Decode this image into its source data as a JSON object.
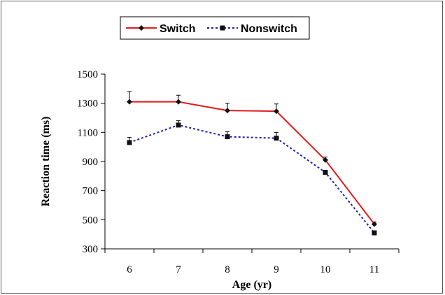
{
  "chart_data": {
    "type": "line",
    "title": "",
    "xlabel": "Age (yr)",
    "ylabel": "Reaction time (ms)",
    "categories": [
      "6",
      "7",
      "8",
      "9",
      "10",
      "11"
    ],
    "ylim": [
      300,
      1500
    ],
    "yticks": [
      300,
      500,
      700,
      900,
      1100,
      1300,
      1500
    ],
    "grid": false,
    "legend_position": "top",
    "series": [
      {
        "name": "Switch",
        "values": [
          1310,
          1310,
          1250,
          1245,
          910,
          470
        ],
        "error": [
          70,
          45,
          50,
          50,
          20,
          15
        ],
        "color": "#e01b1b",
        "line_style": "solid",
        "marker": "diamond"
      },
      {
        "name": "Nonswitch",
        "values": [
          1030,
          1150,
          1070,
          1060,
          825,
          410
        ],
        "error": [
          35,
          30,
          35,
          40,
          15,
          10
        ],
        "color": "#1f1fb4",
        "line_style": "dotted",
        "marker": "square"
      }
    ]
  }
}
